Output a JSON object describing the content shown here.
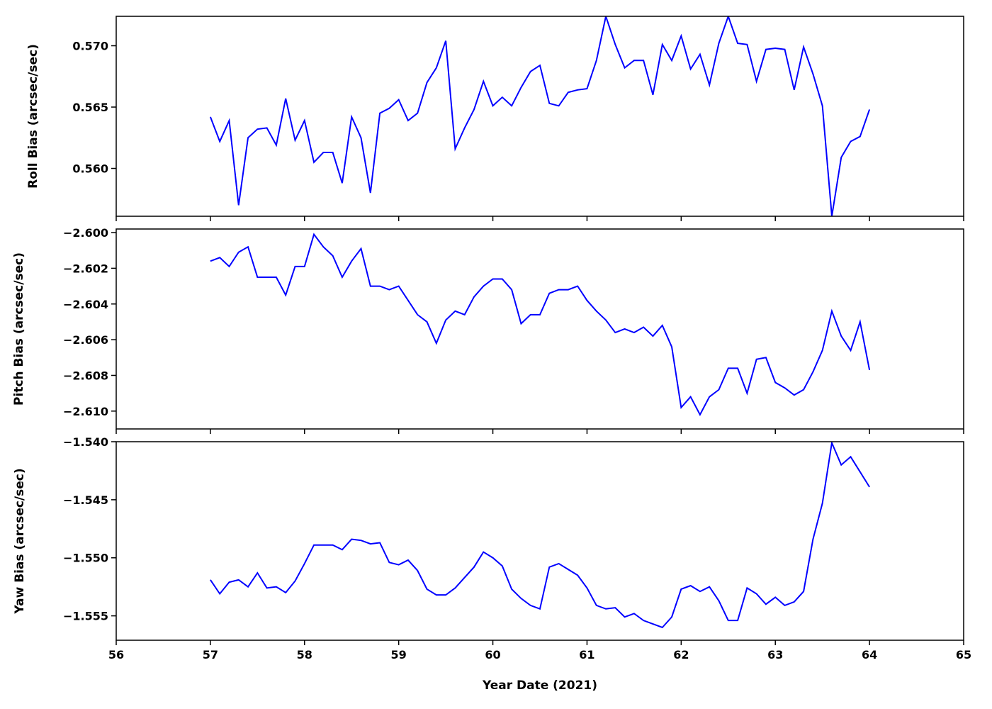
{
  "chart_data": {
    "type": "line",
    "xlabel": "Year Date (2021)",
    "xlim": [
      56,
      65
    ],
    "xticks": [
      56,
      57,
      58,
      59,
      60,
      61,
      62,
      63,
      64,
      65
    ],
    "x": [
      57.0,
      57.1,
      57.2,
      57.3,
      57.4,
      57.5,
      57.6,
      57.7,
      57.8,
      57.9,
      58.0,
      58.1,
      58.2,
      58.3,
      58.4,
      58.5,
      58.6,
      58.7,
      58.8,
      58.9,
      59.0,
      59.1,
      59.2,
      59.3,
      59.4,
      59.5,
      59.6,
      59.7,
      59.8,
      59.9,
      60.0,
      60.1,
      60.2,
      60.3,
      60.4,
      60.5,
      60.6,
      60.7,
      60.8,
      60.9,
      61.0,
      61.1,
      61.2,
      61.3,
      61.4,
      61.5,
      61.6,
      61.7,
      61.8,
      61.9,
      62.0,
      62.1,
      62.2,
      62.3,
      62.4,
      62.5,
      62.6,
      62.7,
      62.8,
      62.9,
      63.0,
      63.1,
      63.2,
      63.3,
      63.4,
      63.5,
      63.6,
      63.7,
      63.8,
      63.9,
      64.0
    ],
    "panels": [
      {
        "ylabel": "Roll Bias (arcsec/sec)",
        "ylim": [
          0.5561,
          0.5724
        ],
        "yticks": [
          {
            "value": 0.56,
            "label": "0.560"
          },
          {
            "value": 0.565,
            "label": "0.565"
          },
          {
            "value": 0.57,
            "label": "0.570"
          }
        ],
        "series": [
          {
            "color": "#0000ff",
            "values": [
              0.5642,
              0.5622,
              0.5639,
              0.557,
              0.5625,
              0.5632,
              0.5633,
              0.5619,
              0.5657,
              0.5623,
              0.5639,
              0.5605,
              0.5613,
              0.5613,
              0.5588,
              0.5642,
              0.5625,
              0.558,
              0.5645,
              0.5649,
              0.5656,
              0.5639,
              0.5645,
              0.567,
              0.5682,
              0.5704,
              0.5616,
              0.5633,
              0.5648,
              0.5671,
              0.5651,
              0.5658,
              0.5651,
              0.5666,
              0.5679,
              0.5684,
              0.5653,
              0.5651,
              0.5662,
              0.5664,
              0.5665,
              0.5688,
              0.5724,
              0.5701,
              0.5682,
              0.5688,
              0.5688,
              0.566,
              0.5701,
              0.5688,
              0.5708,
              0.5681,
              0.5693,
              0.5668,
              0.5702,
              0.5724,
              0.5702,
              0.5701,
              0.5671,
              0.5697,
              0.5698,
              0.5697,
              0.5664,
              0.5699,
              0.5677,
              0.5651,
              0.5561,
              0.5609,
              0.5622,
              0.5626,
              0.5648
            ]
          }
        ]
      },
      {
        "ylabel": "Pitch Bias (arcsec/sec)",
        "ylim": [
          -2.611,
          -2.5998
        ],
        "yticks": [
          {
            "value": -2.61,
            "label": "−2.610"
          },
          {
            "value": -2.608,
            "label": "−2.608"
          },
          {
            "value": -2.606,
            "label": "−2.606"
          },
          {
            "value": -2.604,
            "label": "−2.604"
          },
          {
            "value": -2.602,
            "label": "−2.602"
          },
          {
            "value": -2.6,
            "label": "−2.600"
          }
        ],
        "series": [
          {
            "color": "#0000ff",
            "values": [
              -2.6016,
              -2.6014,
              -2.6019,
              -2.6011,
              -2.6008,
              -2.6025,
              -2.6025,
              -2.6025,
              -2.6035,
              -2.6019,
              -2.6019,
              -2.6001,
              -2.6008,
              -2.6013,
              -2.6025,
              -2.6016,
              -2.6009,
              -2.603,
              -2.603,
              -2.6032,
              -2.603,
              -2.6038,
              -2.6046,
              -2.605,
              -2.6062,
              -2.6049,
              -2.6044,
              -2.6046,
              -2.6036,
              -2.603,
              -2.6026,
              -2.6026,
              -2.6032,
              -2.6051,
              -2.6046,
              -2.6046,
              -2.6034,
              -2.6032,
              -2.6032,
              -2.603,
              -2.6038,
              -2.6044,
              -2.6049,
              -2.6056,
              -2.6054,
              -2.6056,
              -2.6053,
              -2.6058,
              -2.6052,
              -2.6064,
              -2.6098,
              -2.6092,
              -2.6102,
              -2.6092,
              -2.6088,
              -2.6076,
              -2.6076,
              -2.609,
              -2.6071,
              -2.607,
              -2.6084,
              -2.6087,
              -2.6091,
              -2.6088,
              -2.6078,
              -2.6066,
              -2.6044,
              -2.6058,
              -2.6066,
              -2.605,
              -2.6077
            ]
          }
        ]
      },
      {
        "ylabel": "Yaw Bias (arcsec/sec)",
        "ylim": [
          -1.5571,
          -1.54
        ],
        "yticks": [
          {
            "value": -1.555,
            "label": "−1.555"
          },
          {
            "value": -1.55,
            "label": "−1.550"
          },
          {
            "value": -1.545,
            "label": "−1.545"
          },
          {
            "value": -1.54,
            "label": "−1.540"
          }
        ],
        "series": [
          {
            "color": "#0000ff",
            "values": [
              -1.5519,
              -1.5531,
              -1.5521,
              -1.5519,
              -1.5525,
              -1.5513,
              -1.5526,
              -1.5525,
              -1.553,
              -1.552,
              -1.5505,
              -1.5489,
              -1.5489,
              -1.5489,
              -1.5493,
              -1.5484,
              -1.5485,
              -1.5488,
              -1.5487,
              -1.5504,
              -1.5506,
              -1.5502,
              -1.5511,
              -1.5527,
              -1.5532,
              -1.5532,
              -1.5526,
              -1.5517,
              -1.5508,
              -1.5495,
              -1.55,
              -1.5507,
              -1.5527,
              -1.5535,
              -1.5541,
              -1.5544,
              -1.5508,
              -1.5505,
              -1.551,
              -1.5515,
              -1.5526,
              -1.5541,
              -1.5544,
              -1.5543,
              -1.5551,
              -1.5548,
              -1.5554,
              -1.5557,
              -1.556,
              -1.5551,
              -1.5527,
              -1.5524,
              -1.5529,
              -1.5525,
              -1.5537,
              -1.5554,
              -1.5554,
              -1.5526,
              -1.5531,
              -1.554,
              -1.5534,
              -1.5541,
              -1.5538,
              -1.5529,
              -1.5484,
              -1.5453,
              -1.5401,
              -1.542,
              -1.5413,
              -1.5426,
              -1.5439
            ]
          }
        ]
      }
    ]
  }
}
